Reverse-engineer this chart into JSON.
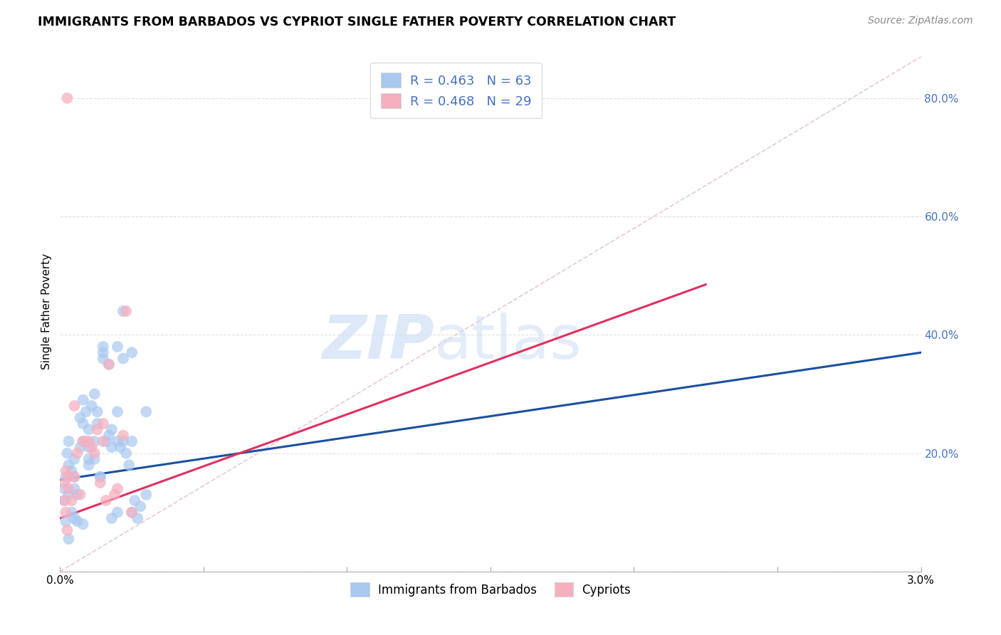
{
  "title": "IMMIGRANTS FROM BARBADOS VS CYPRIOT SINGLE FATHER POVERTY CORRELATION CHART",
  "source": "Source: ZipAtlas.com",
  "ylabel": "Single Father Poverty",
  "x_lim": [
    0.0,
    0.03
  ],
  "y_lim": [
    0.0,
    0.88
  ],
  "legend_r1": "R = 0.463   N = 63",
  "legend_r2": "R = 0.468   N = 29",
  "legend_label1": "Immigrants from Barbados",
  "legend_label2": "Cypriots",
  "blue_color": "#a8c8f0",
  "pink_color": "#f5b0c0",
  "blue_line_color": "#1a50a0",
  "pink_line_color": "#e03060",
  "diag_color": "#cccccc",
  "watermark_color": "#ccddf5",
  "watermark_zip": "ZIP",
  "watermark_atlas": "atlas",
  "grid_color": "#e0e0e8",
  "blue_scatter_x": [
    0.00025,
    0.0003,
    0.0003,
    0.0004,
    0.0005,
    0.0005,
    0.0005,
    0.0006,
    0.0007,
    0.0007,
    0.0008,
    0.0008,
    0.0008,
    0.0009,
    0.001,
    0.001,
    0.001,
    0.0011,
    0.0012,
    0.0012,
    0.0013,
    0.0013,
    0.0014,
    0.0015,
    0.0015,
    0.0016,
    0.0017,
    0.0017,
    0.0018,
    0.0018,
    0.002,
    0.002,
    0.002,
    0.0021,
    0.0022,
    0.0022,
    0.0023,
    0.0024,
    0.0025,
    0.0025,
    0.0026,
    0.0027,
    0.003,
    0.003,
    0.0028,
    0.0022,
    0.0025,
    0.002,
    0.0018,
    0.0015,
    0.0014,
    0.0012,
    0.001,
    0.0008,
    0.0006,
    0.0005,
    0.0004,
    0.0003,
    0.0002,
    0.00015,
    0.00015,
    0.0002,
    0.0003
  ],
  "blue_scatter_y": [
    0.2,
    0.22,
    0.18,
    0.17,
    0.19,
    0.16,
    0.14,
    0.13,
    0.21,
    0.26,
    0.22,
    0.25,
    0.29,
    0.27,
    0.21,
    0.24,
    0.19,
    0.28,
    0.22,
    0.3,
    0.27,
    0.25,
    0.16,
    0.37,
    0.36,
    0.22,
    0.23,
    0.35,
    0.24,
    0.21,
    0.38,
    0.27,
    0.22,
    0.21,
    0.36,
    0.22,
    0.2,
    0.18,
    0.22,
    0.37,
    0.12,
    0.09,
    0.27,
    0.13,
    0.11,
    0.44,
    0.1,
    0.1,
    0.09,
    0.38,
    0.16,
    0.19,
    0.18,
    0.08,
    0.085,
    0.09,
    0.1,
    0.13,
    0.16,
    0.14,
    0.12,
    0.085,
    0.055
  ],
  "pink_scatter_x": [
    0.00015,
    0.00015,
    0.0002,
    0.0002,
    0.0003,
    0.0003,
    0.0004,
    0.0005,
    0.0005,
    0.0006,
    0.0007,
    0.0008,
    0.001,
    0.0011,
    0.0013,
    0.0014,
    0.0015,
    0.0016,
    0.0017,
    0.0019,
    0.002,
    0.0022,
    0.0023,
    0.0025,
    0.0009,
    0.0012,
    0.0015,
    0.00025,
    0.00025
  ],
  "pink_scatter_y": [
    0.15,
    0.12,
    0.17,
    0.1,
    0.16,
    0.14,
    0.12,
    0.16,
    0.28,
    0.2,
    0.13,
    0.22,
    0.22,
    0.21,
    0.24,
    0.15,
    0.22,
    0.12,
    0.35,
    0.13,
    0.14,
    0.23,
    0.44,
    0.1,
    0.22,
    0.2,
    0.25,
    0.8,
    0.07
  ],
  "blue_line_x": [
    0.0,
    0.03
  ],
  "blue_line_y": [
    0.155,
    0.37
  ],
  "pink_line_x": [
    0.0,
    0.0225
  ],
  "pink_line_y": [
    0.09,
    0.485
  ],
  "diag_line_x": [
    0.0,
    0.03
  ],
  "diag_line_y": [
    0.0,
    0.87
  ],
  "y_ticks": [
    0.0,
    0.2,
    0.4,
    0.6,
    0.8
  ],
  "y_tick_labels": [
    "",
    "20.0%",
    "40.0%",
    "60.0%",
    "80.0%"
  ],
  "x_ticks": [
    0.0,
    0.005,
    0.01,
    0.015,
    0.02,
    0.025,
    0.03
  ],
  "x_tick_labels": [
    "0.0%",
    "",
    "",
    "",
    "",
    "",
    "3.0%"
  ]
}
